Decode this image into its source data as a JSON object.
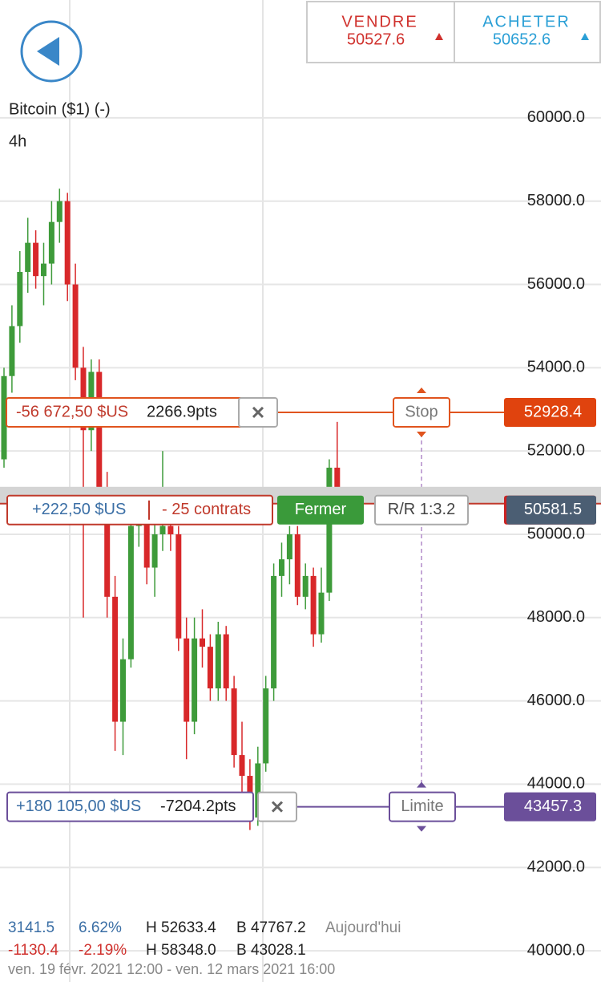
{
  "header": {
    "sell": {
      "label": "VENDRE",
      "price": "50527.6"
    },
    "buy": {
      "label": "ACHETER",
      "price": "50652.6"
    }
  },
  "instrument": {
    "name": "Bitcoin ($1) (-)",
    "timeframe": "4h"
  },
  "chart_data": {
    "type": "candlestick",
    "up_color": "#3e9b3a",
    "down_color": "#d8282a",
    "ylim": [
      39250,
      62830
    ],
    "yticks": [
      {
        "value": 40000,
        "label": "40000.0"
      },
      {
        "value": 42000,
        "label": "42000.0"
      },
      {
        "value": 44000,
        "label": "44000.0"
      },
      {
        "value": 46000,
        "label": "46000.0"
      },
      {
        "value": 48000,
        "label": "48000.0"
      },
      {
        "value": 50000,
        "label": "50000.0"
      },
      {
        "value": 52000,
        "label": "52000.0"
      },
      {
        "value": 54000,
        "label": "54000.0"
      },
      {
        "value": 56000,
        "label": "56000.0"
      },
      {
        "value": 58000,
        "label": "58000.0"
      },
      {
        "value": 60000,
        "label": "60000.0"
      }
    ],
    "grid": true,
    "candles": [
      [
        51800,
        54000,
        51600,
        53800
      ],
      [
        53800,
        55500,
        53400,
        55000
      ],
      [
        55000,
        56800,
        54600,
        56300
      ],
      [
        56300,
        57600,
        55800,
        57000
      ],
      [
        57000,
        57300,
        55900,
        56200
      ],
      [
        56200,
        57000,
        55500,
        56500
      ],
      [
        56500,
        58000,
        56000,
        57500
      ],
      [
        57500,
        58300,
        57000,
        58000
      ],
      [
        58000,
        58200,
        55600,
        56000
      ],
      [
        56000,
        56500,
        53700,
        54000
      ],
      [
        54000,
        54500,
        48000,
        52500
      ],
      [
        52500,
        54200,
        52000,
        53900
      ],
      [
        53900,
        54200,
        50700,
        51000
      ],
      [
        51000,
        51500,
        48000,
        48500
      ],
      [
        48500,
        49000,
        44800,
        45500
      ],
      [
        45500,
        47500,
        44700,
        47000
      ],
      [
        47000,
        50800,
        46800,
        50200
      ],
      [
        50200,
        51000,
        49700,
        50500
      ],
      [
        50500,
        50800,
        48800,
        49200
      ],
      [
        49200,
        50400,
        48500,
        50000
      ],
      [
        50000,
        52000,
        49600,
        50200
      ],
      [
        50200,
        50600,
        49600,
        50000
      ],
      [
        50000,
        50200,
        47200,
        47500
      ],
      [
        47500,
        48000,
        44600,
        45500
      ],
      [
        45500,
        48000,
        45200,
        47500
      ],
      [
        47500,
        48200,
        46800,
        47300
      ],
      [
        47300,
        47600,
        46000,
        46300
      ],
      [
        46300,
        47900,
        46000,
        47600
      ],
      [
        47600,
        47800,
        46000,
        46300
      ],
      [
        46300,
        46600,
        44400,
        44700
      ],
      [
        44700,
        45500,
        43800,
        44200
      ],
      [
        44200,
        44600,
        42900,
        43200
      ],
      [
        43200,
        44900,
        43000,
        44500
      ],
      [
        44500,
        46600,
        44300,
        46300
      ],
      [
        46300,
        49300,
        46000,
        49000
      ],
      [
        49000,
        49800,
        48500,
        49400
      ],
      [
        49400,
        50200,
        48800,
        50000
      ],
      [
        50000,
        50200,
        48300,
        48500
      ],
      [
        48500,
        49300,
        48200,
        49000
      ],
      [
        49000,
        49200,
        47300,
        47600
      ],
      [
        47600,
        49200,
        47400,
        48600
      ],
      [
        48600,
        51800,
        48400,
        51600
      ],
      [
        51600,
        52700,
        50300,
        50581.5
      ]
    ],
    "stop": {
      "value": 52928.4,
      "pnl": "-56 672,50 $US",
      "pts": "2266.9pts",
      "label": "Stop"
    },
    "position": {
      "value": 50581.5,
      "pnl": "+222,50 $US",
      "size": "- 25 contrats",
      "close": "Fermer",
      "rr": "R/R 1:3.2"
    },
    "limit": {
      "value": 43457.3,
      "pnl": "+180 105,00 $US",
      "pts": "-7204.2pts",
      "label": "Limite"
    }
  },
  "footer": {
    "row1": [
      "3141.5",
      "6.62%",
      "H 52633.4",
      "B 47767.2",
      "Aujourd'hui"
    ],
    "row2": [
      "-1130.4",
      "-2.19%",
      "H 58348.0",
      "B 43028.1"
    ],
    "range": "ven. 19 févr. 2021 12:00 - ven. 12 mars 2021 16:00"
  }
}
